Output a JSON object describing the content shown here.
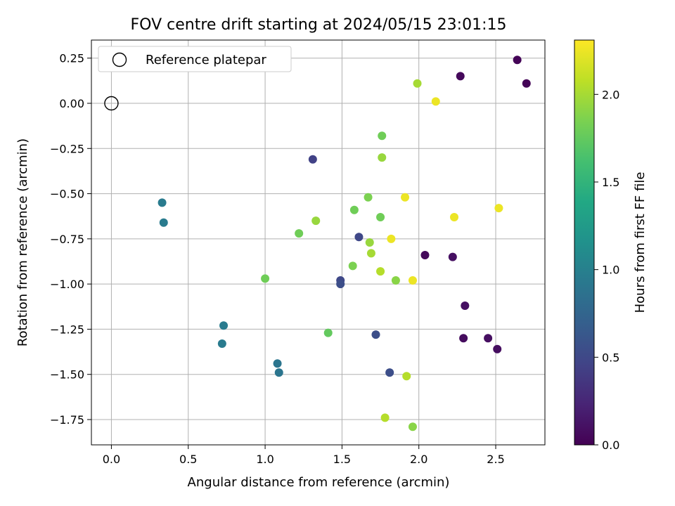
{
  "chart_data": {
    "type": "scatter",
    "title": "FOV centre drift starting at 2024/05/15 23:01:15",
    "xlabel": "Angular distance from reference (arcmin)",
    "ylabel": "Rotation from reference (arcmin)",
    "xlim": [
      -0.13,
      2.82
    ],
    "ylim": [
      -1.89,
      0.35
    ],
    "x_ticks": [
      0.0,
      0.5,
      1.0,
      1.5,
      2.0,
      2.5
    ],
    "x_tick_labels": [
      "0.0",
      "0.5",
      "1.0",
      "1.5",
      "2.0",
      "2.5"
    ],
    "y_ticks": [
      0.25,
      0.0,
      -0.25,
      -0.5,
      -0.75,
      -1.0,
      -1.25,
      -1.5,
      -1.75
    ],
    "y_tick_labels": [
      "0.25",
      "0.00",
      "−0.25",
      "−0.50",
      "−0.75",
      "−1.00",
      "−1.25",
      "−1.50",
      "−1.75"
    ],
    "grid": true,
    "legend": {
      "position": "top-left",
      "entries": [
        "Reference platepar"
      ]
    },
    "reference_point": {
      "x": 0.0,
      "y": 0.0
    },
    "colorbar": {
      "label": "Hours from first FF file",
      "range": [
        0.0,
        2.31
      ],
      "ticks": [
        0.0,
        0.5,
        1.0,
        1.5,
        2.0
      ],
      "tick_labels": [
        "0.0",
        "0.5",
        "1.0",
        "1.5",
        "2.0"
      ],
      "colormap": "viridis"
    },
    "points": [
      {
        "x": 2.64,
        "y": 0.24,
        "h": 0.02
      },
      {
        "x": 2.7,
        "y": 0.11,
        "h": 0.02
      },
      {
        "x": 2.27,
        "y": 0.15,
        "h": 0.05
      },
      {
        "x": 2.04,
        "y": -0.84,
        "h": 0.05
      },
      {
        "x": 2.22,
        "y": -0.85,
        "h": 0.1
      },
      {
        "x": 2.3,
        "y": -1.12,
        "h": 0.1
      },
      {
        "x": 2.29,
        "y": -1.3,
        "h": 0.07
      },
      {
        "x": 2.45,
        "y": -1.3,
        "h": 0.09
      },
      {
        "x": 2.51,
        "y": -1.36,
        "h": 0.08
      },
      {
        "x": 1.31,
        "y": -0.31,
        "h": 0.45
      },
      {
        "x": 1.61,
        "y": -0.74,
        "h": 0.5
      },
      {
        "x": 1.49,
        "y": -0.98,
        "h": 0.5
      },
      {
        "x": 1.49,
        "y": -1.0,
        "h": 0.55
      },
      {
        "x": 1.72,
        "y": -1.28,
        "h": 0.55
      },
      {
        "x": 1.81,
        "y": -1.49,
        "h": 0.55
      },
      {
        "x": 0.33,
        "y": -0.55,
        "h": 0.95
      },
      {
        "x": 0.34,
        "y": -0.66,
        "h": 0.95
      },
      {
        "x": 0.73,
        "y": -1.23,
        "h": 0.95
      },
      {
        "x": 0.72,
        "y": -1.33,
        "h": 0.95
      },
      {
        "x": 1.08,
        "y": -1.44,
        "h": 0.9
      },
      {
        "x": 1.09,
        "y": -1.49,
        "h": 0.9
      },
      {
        "x": 1.76,
        "y": -0.18,
        "h": 1.8
      },
      {
        "x": 1.76,
        "y": -0.3,
        "h": 1.95
      },
      {
        "x": 1.67,
        "y": -0.52,
        "h": 1.85
      },
      {
        "x": 1.58,
        "y": -0.59,
        "h": 1.8
      },
      {
        "x": 1.75,
        "y": -0.63,
        "h": 1.8
      },
      {
        "x": 1.22,
        "y": -0.72,
        "h": 1.8
      },
      {
        "x": 1.33,
        "y": -0.65,
        "h": 1.95
      },
      {
        "x": 1.68,
        "y": -0.77,
        "h": 1.95
      },
      {
        "x": 1.69,
        "y": -0.83,
        "h": 2.0
      },
      {
        "x": 1.57,
        "y": -0.9,
        "h": 1.85
      },
      {
        "x": 1.75,
        "y": -0.93,
        "h": 2.05
      },
      {
        "x": 1.85,
        "y": -0.98,
        "h": 1.9
      },
      {
        "x": 1.0,
        "y": -0.97,
        "h": 1.8
      },
      {
        "x": 1.41,
        "y": -1.27,
        "h": 1.75
      },
      {
        "x": 1.92,
        "y": -1.51,
        "h": 2.05
      },
      {
        "x": 1.78,
        "y": -1.74,
        "h": 2.05
      },
      {
        "x": 1.96,
        "y": -1.79,
        "h": 1.9
      },
      {
        "x": 1.99,
        "y": 0.11,
        "h": 2.0
      },
      {
        "x": 2.11,
        "y": 0.01,
        "h": 2.25
      },
      {
        "x": 1.91,
        "y": -0.52,
        "h": 2.25
      },
      {
        "x": 1.82,
        "y": -0.75,
        "h": 2.25
      },
      {
        "x": 1.96,
        "y": -0.98,
        "h": 2.25
      },
      {
        "x": 2.23,
        "y": -0.63,
        "h": 2.25
      },
      {
        "x": 2.52,
        "y": -0.58,
        "h": 2.25
      }
    ]
  }
}
